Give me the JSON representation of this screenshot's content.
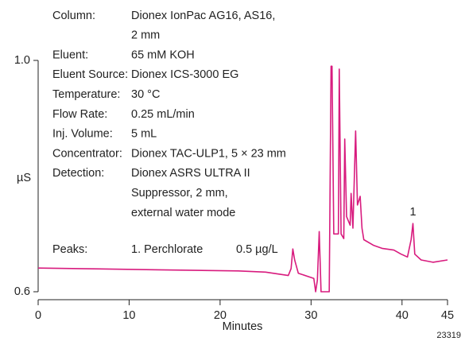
{
  "chart_data": {
    "type": "line",
    "x_label": "Minutes",
    "y_label": "µS",
    "figure_number": "23319",
    "color": "#d81b7e",
    "xlim": [
      0,
      45
    ],
    "xticks": [
      0,
      10,
      20,
      30,
      40,
      45
    ],
    "ylim": [
      0.6,
      1.0
    ],
    "yticks": [
      0.6,
      {
        "value": 1.0,
        "label": "1.0"
      }
    ],
    "conditions": [
      {
        "label": "Column:",
        "lines": [
          "Dionex IonPac AG16, AS16,",
          "2 mm"
        ]
      },
      {
        "label": "Eluent:",
        "lines": [
          "65 mM KOH"
        ]
      },
      {
        "label": "Eluent Source:",
        "lines": [
          "Dionex ICS-3000 EG"
        ]
      },
      {
        "label": "Temperature:",
        "lines": [
          "30 °C"
        ]
      },
      {
        "label": "Flow Rate:",
        "lines": [
          "0.25 mL/min"
        ]
      },
      {
        "label": "Inj. Volume:",
        "lines": [
          "5 mL"
        ]
      },
      {
        "label": "Concentrator:",
        "lines": [
          "Dionex TAC-ULP1, 5 × 23 mm"
        ]
      },
      {
        "label": "Detection:",
        "lines": [
          "Dionex ASRS ULTRA II",
          "Suppressor, 2 mm,",
          "external water mode"
        ]
      }
    ],
    "peaks": {
      "label": "Peaks:",
      "name": "1. Perchlorate",
      "amount": "0.5 µg/L"
    },
    "peak_labels": [
      {
        "text": "1",
        "x": 41.2,
        "y": 0.718
      }
    ],
    "x": [
      0,
      4.5,
      13.3,
      22.0,
      25.0,
      27.5,
      27.8,
      28.0,
      28.2,
      28.6,
      30.3,
      30.5,
      30.7,
      30.9,
      31.1,
      32.0,
      32.2,
      32.3,
      32.5,
      33.0,
      33.1,
      33.3,
      33.6,
      33.7,
      33.9,
      34.3,
      34.4,
      34.6,
      34.9,
      35.1,
      35.4,
      35.6,
      35.8,
      36.9,
      37.8,
      39.1,
      39.9,
      40.6,
      41.0,
      41.2,
      41.4,
      42.1,
      43.4,
      45
    ],
    "values": [
      0.641,
      0.64,
      0.638,
      0.636,
      0.634,
      0.628,
      0.64,
      0.674,
      0.655,
      0.632,
      0.623,
      0.6,
      0.62,
      0.704,
      0.6,
      0.6,
      0.99,
      0.99,
      0.7,
      0.7,
      0.985,
      0.7,
      0.692,
      0.864,
      0.73,
      0.715,
      0.77,
      0.71,
      0.878,
      0.75,
      0.765,
      0.71,
      0.69,
      0.68,
      0.675,
      0.672,
      0.665,
      0.66,
      0.69,
      0.718,
      0.665,
      0.655,
      0.651,
      0.655
    ]
  }
}
